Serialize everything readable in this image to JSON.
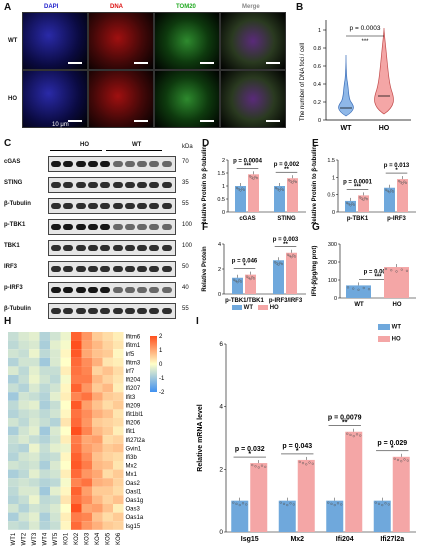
{
  "panels": {
    "A": "A",
    "B": "B",
    "C": "C",
    "D": "D",
    "E": "E",
    "F": "F",
    "G": "G",
    "H": "H",
    "I": "I"
  },
  "panelA": {
    "channels": [
      "DAPI",
      "DNA",
      "TOM20",
      "Merge"
    ],
    "channel_colors": [
      "#2222cc",
      "#dd1111",
      "#22aa22",
      "#888888"
    ],
    "rows": [
      "WT",
      "HO"
    ],
    "scale_label": "10 μm"
  },
  "panelB": {
    "pvalue": "p = 0.0003",
    "stars": "***",
    "ylabel": "The number of DNA foci / cell",
    "yticks": [
      "0",
      "0.2",
      "0.4",
      "0.6",
      "0.8",
      "1"
    ],
    "groups": [
      "WT",
      "HO"
    ]
  },
  "panelC": {
    "groups": [
      "HO",
      "WT"
    ],
    "kda_label": "kDa",
    "bands": [
      {
        "name": "cGAS",
        "kda": "70"
      },
      {
        "name": "STING",
        "kda": "35"
      },
      {
        "name": "β-Tubulin",
        "kda": "55"
      },
      {
        "name": "p-TBK1",
        "kda": "100"
      },
      {
        "name": "TBK1",
        "kda": "100"
      },
      {
        "name": "IRF3",
        "kda": "50"
      },
      {
        "name": "p-IRF3",
        "kda": "40"
      },
      {
        "name": "β-Tubulin",
        "kda": "55"
      }
    ]
  },
  "legend": {
    "wt": "WT",
    "ho": "HO",
    "wt_color": "#6fa8dc",
    "ho_color": "#f4a6a6"
  },
  "chart_data": [
    {
      "id": "D",
      "type": "bar",
      "ylabel": "Relative Protein to β-tubulin",
      "categories": [
        "cGAS",
        "STING"
      ],
      "ylim": [
        0,
        2
      ],
      "yticks": [
        "0",
        "0.5",
        "1",
        "1.5",
        "2"
      ],
      "series": [
        {
          "name": "WT",
          "values": [
            1.0,
            1.0
          ]
        },
        {
          "name": "HO",
          "values": [
            1.45,
            1.3
          ]
        }
      ],
      "annotations": [
        {
          "p": "p = 0.0004",
          "stars": "***"
        },
        {
          "p": "p = 0.002",
          "stars": "**"
        }
      ]
    },
    {
      "id": "E",
      "type": "bar",
      "ylabel": "Relative Protein to β-tubulin",
      "categories": [
        "p-TBK1",
        "p-IRF3"
      ],
      "ylim": [
        0,
        1.5
      ],
      "yticks": [
        "0",
        "0.5",
        "1",
        "1.5"
      ],
      "series": [
        {
          "name": "WT",
          "values": [
            0.32,
            0.7
          ]
        },
        {
          "name": "HO",
          "values": [
            0.48,
            0.95
          ]
        }
      ],
      "annotations": [
        {
          "p": "p = 0.0001",
          "stars": "***"
        },
        {
          "p": "p = 0.013",
          "stars": "*"
        }
      ]
    },
    {
      "id": "F",
      "type": "bar",
      "ylabel": "Relative Protein",
      "categories": [
        "p-TBK1/TBK1",
        "p-IRF3/IRF3"
      ],
      "ylim": [
        0,
        4
      ],
      "yticks": [
        "0",
        "2",
        "4"
      ],
      "series": [
        {
          "name": "WT",
          "values": [
            1.3,
            2.7
          ]
        },
        {
          "name": "HO",
          "values": [
            1.55,
            3.3
          ]
        }
      ],
      "annotations": [
        {
          "p": "p = 0.046",
          "stars": "*"
        },
        {
          "p": "p = 0.003",
          "stars": "**"
        }
      ]
    },
    {
      "id": "G",
      "type": "bar",
      "ylabel": "IFN-β(pg/mg prot)",
      "categories": [
        "WT",
        "HO"
      ],
      "ylim": [
        0,
        300
      ],
      "yticks": [
        "0",
        "100",
        "200",
        "300"
      ],
      "series": [
        {
          "name": "IFN-β",
          "values": [
            70,
            172
          ]
        }
      ],
      "annotations": [
        {
          "p": "p = 0.0002",
          "stars": "***"
        }
      ]
    },
    {
      "id": "H",
      "type": "heatmap",
      "rows": [
        "Ifitm6",
        "Ifitm1",
        "Irf5",
        "Ifitm3",
        "Irf7",
        "Ifi204",
        "Ifi207",
        "Ifit3",
        "Ifi209",
        "Ifit1bl1",
        "Ifi206",
        "Ifit1",
        "Ifi27l2a",
        "Gvin1",
        "Ifi3b",
        "Mx2",
        "Mx1",
        "Oas2",
        "Oasl1",
        "Oas1g",
        "Oas3",
        "Oas1a",
        "Isg15"
      ],
      "columns": [
        "WT1",
        "WT2",
        "WT3",
        "WT4",
        "WT5",
        "KO1",
        "KO2",
        "KO3",
        "KO4",
        "KO5",
        "KO6"
      ],
      "scale_ticks": [
        "2",
        "1",
        "0",
        "-1",
        "-2"
      ],
      "values": [
        [
          -0.6,
          -0.4,
          -0.3,
          -0.8,
          -0.5,
          -0.2,
          1.8,
          1.2,
          0.6,
          0.4,
          0.2
        ],
        [
          -0.7,
          -0.5,
          -0.4,
          -0.9,
          -0.3,
          -0.1,
          2.0,
          1.1,
          0.8,
          0.5,
          0.3
        ],
        [
          -0.5,
          -0.6,
          -0.2,
          -0.7,
          -0.4,
          0.1,
          1.9,
          1.0,
          0.7,
          0.6,
          0.1
        ],
        [
          -0.8,
          -0.5,
          -0.5,
          -1.0,
          -0.4,
          0.0,
          1.7,
          1.3,
          0.9,
          0.3,
          0.2
        ],
        [
          -0.4,
          -0.7,
          -0.3,
          -0.6,
          -0.6,
          0.2,
          1.6,
          1.4,
          0.5,
          0.7,
          0.4
        ],
        [
          -0.9,
          -0.6,
          -0.2,
          -0.5,
          -0.7,
          -0.1,
          1.5,
          1.5,
          0.8,
          0.5,
          0.3
        ],
        [
          -0.6,
          -0.8,
          -0.4,
          -0.7,
          -0.5,
          0.1,
          1.8,
          1.2,
          0.6,
          0.8,
          0.2
        ],
        [
          -1.0,
          -0.5,
          -0.6,
          -0.8,
          -0.3,
          0.2,
          1.4,
          1.6,
          1.0,
          0.6,
          0.5
        ],
        [
          -0.7,
          -0.4,
          -0.3,
          -0.9,
          -0.6,
          0.0,
          1.9,
          1.1,
          0.7,
          0.4,
          0.6
        ],
        [
          -0.8,
          -0.6,
          -0.5,
          -0.7,
          -0.5,
          0.1,
          1.6,
          1.3,
          0.9,
          0.7,
          0.3
        ],
        [
          -0.5,
          -0.7,
          -0.4,
          -0.6,
          -0.8,
          0.3,
          1.7,
          1.2,
          0.6,
          0.5,
          0.4
        ],
        [
          -0.9,
          -0.5,
          -0.3,
          -1.0,
          -0.4,
          0.0,
          2.0,
          1.4,
          0.8,
          0.6,
          0.2
        ],
        [
          -0.6,
          -0.4,
          -0.6,
          -0.8,
          -0.5,
          0.2,
          1.5,
          1.0,
          1.1,
          0.4,
          0.5
        ],
        [
          -0.7,
          -0.8,
          -0.2,
          -0.6,
          -0.3,
          -0.2,
          1.6,
          1.1,
          0.9,
          0.6,
          0.7
        ],
        [
          -0.8,
          -0.5,
          -0.4,
          -0.7,
          -0.6,
          0.1,
          1.8,
          1.3,
          0.7,
          0.5,
          0.4
        ],
        [
          -0.5,
          -0.6,
          -0.5,
          -0.9,
          -0.4,
          0.0,
          1.9,
          1.5,
          0.8,
          0.7,
          0.3
        ],
        [
          -0.9,
          -0.7,
          -0.3,
          -0.6,
          -0.5,
          0.2,
          1.7,
          1.2,
          1.0,
          0.4,
          0.6
        ],
        [
          -0.6,
          -0.5,
          -0.6,
          -0.8,
          -0.7,
          -0.1,
          1.4,
          1.6,
          0.9,
          0.8,
          0.5
        ],
        [
          -0.7,
          -0.4,
          -0.4,
          -1.0,
          -0.3,
          0.1,
          1.8,
          1.1,
          0.6,
          0.6,
          0.4
        ],
        [
          -0.8,
          -0.6,
          -0.2,
          -0.7,
          -0.6,
          0.3,
          1.6,
          1.3,
          0.8,
          0.5,
          0.7
        ],
        [
          -0.5,
          -0.8,
          -0.5,
          -0.6,
          -0.4,
          0.0,
          2.0,
          1.0,
          1.1,
          0.7,
          0.2
        ],
        [
          -0.9,
          -0.5,
          -0.3,
          -0.9,
          -0.5,
          0.2,
          1.5,
          1.4,
          0.7,
          0.4,
          0.6
        ],
        [
          -0.6,
          -0.7,
          -0.4,
          -0.8,
          -0.6,
          0.1,
          1.7,
          1.2,
          0.9,
          0.6,
          0.5
        ]
      ]
    },
    {
      "id": "I",
      "type": "bar",
      "ylabel": "Relative mRNA level",
      "categories": [
        "Isg15",
        "Mx2",
        "Ifi204",
        "Ifi27l2a"
      ],
      "ylim": [
        0,
        6
      ],
      "yticks": [
        "0",
        "2",
        "4",
        "6"
      ],
      "series": [
        {
          "name": "WT",
          "values": [
            1.0,
            1.0,
            1.0,
            1.0
          ]
        },
        {
          "name": "HO",
          "values": [
            2.2,
            2.3,
            3.2,
            2.4
          ]
        }
      ],
      "annotations": [
        {
          "p": "p = 0.032",
          "stars": "*"
        },
        {
          "p": "p = 0.043",
          "stars": "*"
        },
        {
          "p": "p = 0.0079",
          "stars": "**"
        },
        {
          "p": "p = 0.029",
          "stars": "*"
        }
      ]
    }
  ]
}
